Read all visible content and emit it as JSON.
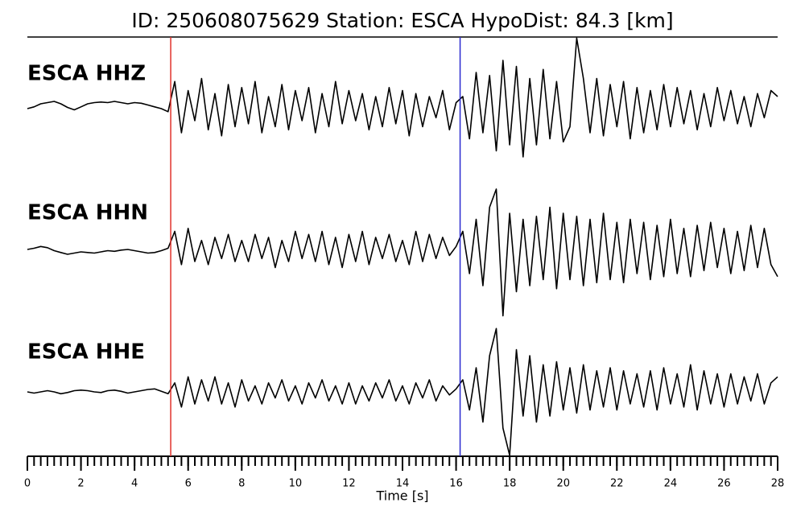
{
  "chart_data": {
    "type": "waveform",
    "title": "ID: 250608075629   Station: ESCA   HypoDist:    84.3 [km]",
    "xlabel": "Time [s]",
    "xlim": [
      0,
      28
    ],
    "xticks": [
      0,
      2,
      4,
      6,
      8,
      10,
      12,
      14,
      16,
      18,
      20,
      22,
      24,
      26,
      28
    ],
    "minor_xtick_interval": 0.25,
    "label_color": "#4c9a0e",
    "picks": [
      {
        "x": 5.35,
        "color": "#e0302a"
      },
      {
        "x": 16.15,
        "color": "#2a2ad0"
      }
    ],
    "x": [
      0,
      0.25,
      0.5,
      0.75,
      1,
      1.25,
      1.5,
      1.75,
      2,
      2.25,
      2.5,
      2.75,
      3,
      3.25,
      3.5,
      3.75,
      4,
      4.25,
      4.5,
      4.75,
      5,
      5.25,
      5.5,
      5.75,
      6,
      6.25,
      6.5,
      6.75,
      7,
      7.25,
      7.5,
      7.75,
      8,
      8.25,
      8.5,
      8.75,
      9,
      9.25,
      9.5,
      9.75,
      10,
      10.25,
      10.5,
      10.75,
      11,
      11.25,
      11.5,
      11.75,
      12,
      12.25,
      12.5,
      12.75,
      13,
      13.25,
      13.5,
      13.75,
      14,
      14.25,
      14.5,
      14.75,
      15,
      15.25,
      15.5,
      15.75,
      16,
      16.25,
      16.5,
      16.75,
      17,
      17.25,
      17.5,
      17.75,
      18,
      18.25,
      18.5,
      18.75,
      19,
      19.25,
      19.5,
      19.75,
      20,
      20.25,
      20.5,
      20.75,
      21,
      21.25,
      21.5,
      21.75,
      22,
      22.25,
      22.5,
      22.75,
      23,
      23.25,
      23.5,
      23.75,
      24,
      24.25,
      24.5,
      24.75,
      25,
      25.25,
      25.5,
      25.75,
      26,
      26.25,
      26.5,
      26.75,
      27,
      27.25,
      27.5,
      27.75,
      28
    ],
    "series": [
      {
        "name": "ESCA HHZ",
        "color": "#000000",
        "values": [
          0,
          0.03,
          0.08,
          0.1,
          0.12,
          0.08,
          0.02,
          -0.02,
          0.03,
          0.08,
          0.1,
          0.11,
          0.1,
          0.12,
          0.1,
          0.08,
          0.1,
          0.09,
          0.06,
          0.03,
          0,
          -0.05,
          0.45,
          -0.4,
          0.3,
          -0.2,
          0.5,
          -0.35,
          0.25,
          -0.45,
          0.4,
          -0.3,
          0.35,
          -0.25,
          0.45,
          -0.4,
          0.2,
          -0.3,
          0.4,
          -0.35,
          0.3,
          -0.2,
          0.35,
          -0.4,
          0.25,
          -0.3,
          0.45,
          -0.25,
          0.3,
          -0.2,
          0.25,
          -0.35,
          0.2,
          -0.3,
          0.35,
          -0.25,
          0.3,
          -0.45,
          0.25,
          -0.3,
          0.2,
          -0.15,
          0.3,
          -0.35,
          0.1,
          0.2,
          -0.5,
          0.6,
          -0.4,
          0.55,
          -0.7,
          0.8,
          -0.6,
          0.7,
          -0.8,
          0.5,
          -0.6,
          0.65,
          -0.5,
          0.45,
          -0.55,
          -0.3,
          1.17,
          0.5,
          -0.4,
          0.5,
          -0.45,
          0.4,
          -0.3,
          0.45,
          -0.5,
          0.35,
          -0.4,
          0.3,
          -0.35,
          0.4,
          -0.3,
          0.35,
          -0.25,
          0.3,
          -0.35,
          0.25,
          -0.3,
          0.35,
          -0.2,
          0.3,
          -0.25,
          0.2,
          -0.3,
          0.25,
          -0.15,
          0.3,
          0.2
        ]
      },
      {
        "name": "ESCA HHN",
        "color": "#000000",
        "values": [
          0,
          0.02,
          0.05,
          0.03,
          -0.02,
          -0.05,
          -0.08,
          -0.06,
          -0.04,
          -0.05,
          -0.06,
          -0.04,
          -0.02,
          -0.03,
          -0.01,
          0,
          -0.02,
          -0.04,
          -0.06,
          -0.05,
          -0.02,
          0.02,
          0.3,
          -0.25,
          0.35,
          -0.2,
          0.15,
          -0.25,
          0.2,
          -0.15,
          0.25,
          -0.2,
          0.15,
          -0.2,
          0.25,
          -0.15,
          0.2,
          -0.3,
          0.15,
          -0.2,
          0.3,
          -0.15,
          0.25,
          -0.2,
          0.3,
          -0.25,
          0.2,
          -0.3,
          0.25,
          -0.2,
          0.3,
          -0.25,
          0.2,
          -0.15,
          0.25,
          -0.2,
          0.15,
          -0.25,
          0.3,
          -0.2,
          0.25,
          -0.15,
          0.2,
          -0.1,
          0.05,
          0.3,
          -0.4,
          0.5,
          -0.6,
          0.7,
          1.0,
          -1.1,
          0.6,
          -0.7,
          0.5,
          -0.6,
          0.55,
          -0.5,
          0.7,
          -0.65,
          0.6,
          -0.5,
          0.55,
          -0.6,
          0.5,
          -0.55,
          0.6,
          -0.5,
          0.45,
          -0.55,
          0.5,
          -0.4,
          0.45,
          -0.5,
          0.4,
          -0.45,
          0.5,
          -0.4,
          0.35,
          -0.45,
          0.4,
          -0.35,
          0.45,
          -0.3,
          0.35,
          -0.4,
          0.3,
          -0.35,
          0.4,
          -0.3,
          0.35,
          -0.25,
          -0.45
        ]
      },
      {
        "name": "ESCA HHE",
        "color": "#000000",
        "values": [
          0,
          -0.02,
          0,
          0.02,
          0,
          -0.03,
          -0.01,
          0.02,
          0.03,
          0.02,
          0,
          -0.01,
          0.02,
          0.03,
          0.01,
          -0.02,
          0,
          0.02,
          0.04,
          0.05,
          0.01,
          -0.03,
          0.15,
          -0.25,
          0.25,
          -0.2,
          0.2,
          -0.15,
          0.25,
          -0.2,
          0.15,
          -0.25,
          0.2,
          -0.15,
          0.1,
          -0.2,
          0.15,
          -0.1,
          0.2,
          -0.15,
          0.1,
          -0.2,
          0.15,
          -0.1,
          0.2,
          -0.15,
          0.1,
          -0.2,
          0.15,
          -0.2,
          0.1,
          -0.15,
          0.15,
          -0.1,
          0.2,
          -0.15,
          0.1,
          -0.2,
          0.15,
          -0.1,
          0.2,
          -0.15,
          0.1,
          -0.05,
          0.05,
          0.2,
          -0.3,
          0.4,
          -0.5,
          0.6,
          1.05,
          -0.6,
          -1.05,
          0.7,
          -0.4,
          0.6,
          -0.5,
          0.45,
          -0.4,
          0.5,
          -0.3,
          0.4,
          -0.35,
          0.45,
          -0.3,
          0.35,
          -0.25,
          0.4,
          -0.3,
          0.35,
          -0.2,
          0.3,
          -0.25,
          0.35,
          -0.3,
          0.4,
          -0.2,
          0.3,
          -0.25,
          0.45,
          -0.3,
          0.35,
          -0.2,
          0.3,
          -0.25,
          0.3,
          -0.2,
          0.25,
          -0.15,
          0.3,
          -0.2,
          0.15,
          0.25
        ]
      }
    ]
  }
}
